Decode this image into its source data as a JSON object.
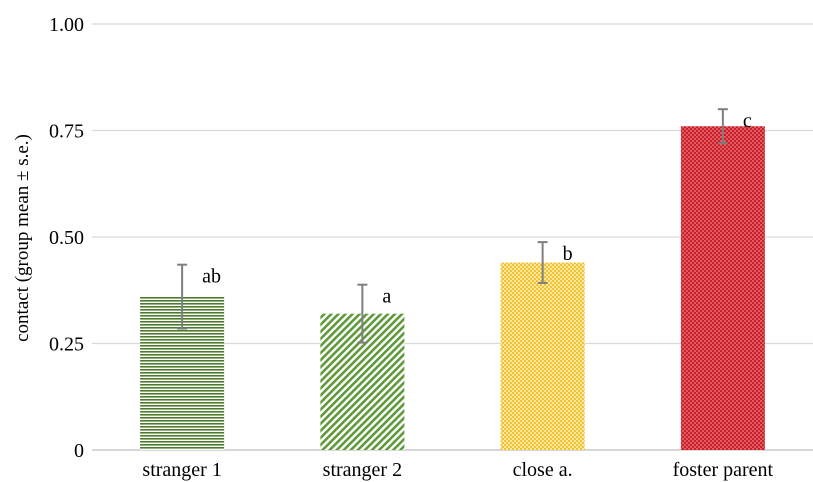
{
  "chart_data": {
    "type": "bar",
    "ylabel": "contact (group mean ± s.e.)",
    "ylim": [
      0,
      1.0
    ],
    "yticks": [
      {
        "value": 0,
        "label": "0"
      },
      {
        "value": 0.25,
        "label": "0.25"
      },
      {
        "value": 0.5,
        "label": "0.50"
      },
      {
        "value": 0.75,
        "label": "0.75"
      },
      {
        "value": 1.0,
        "label": "1.00"
      }
    ],
    "grid": true,
    "legend": "none",
    "categories": [
      "stranger 1",
      "stranger 2",
      "close a.",
      "foster parent"
    ],
    "values": [
      0.36,
      0.32,
      0.44,
      0.76
    ],
    "errors": [
      0.075,
      0.068,
      0.048,
      0.04
    ],
    "significance": [
      "ab",
      "a",
      "b",
      "c"
    ],
    "colors": [
      "#4e7a2e",
      "#5f9a3a",
      "#f2c12e",
      "#cc1f2a"
    ],
    "patterns": [
      "horizontal-lines",
      "diagonal-lines",
      "checker",
      "dots"
    ]
  }
}
